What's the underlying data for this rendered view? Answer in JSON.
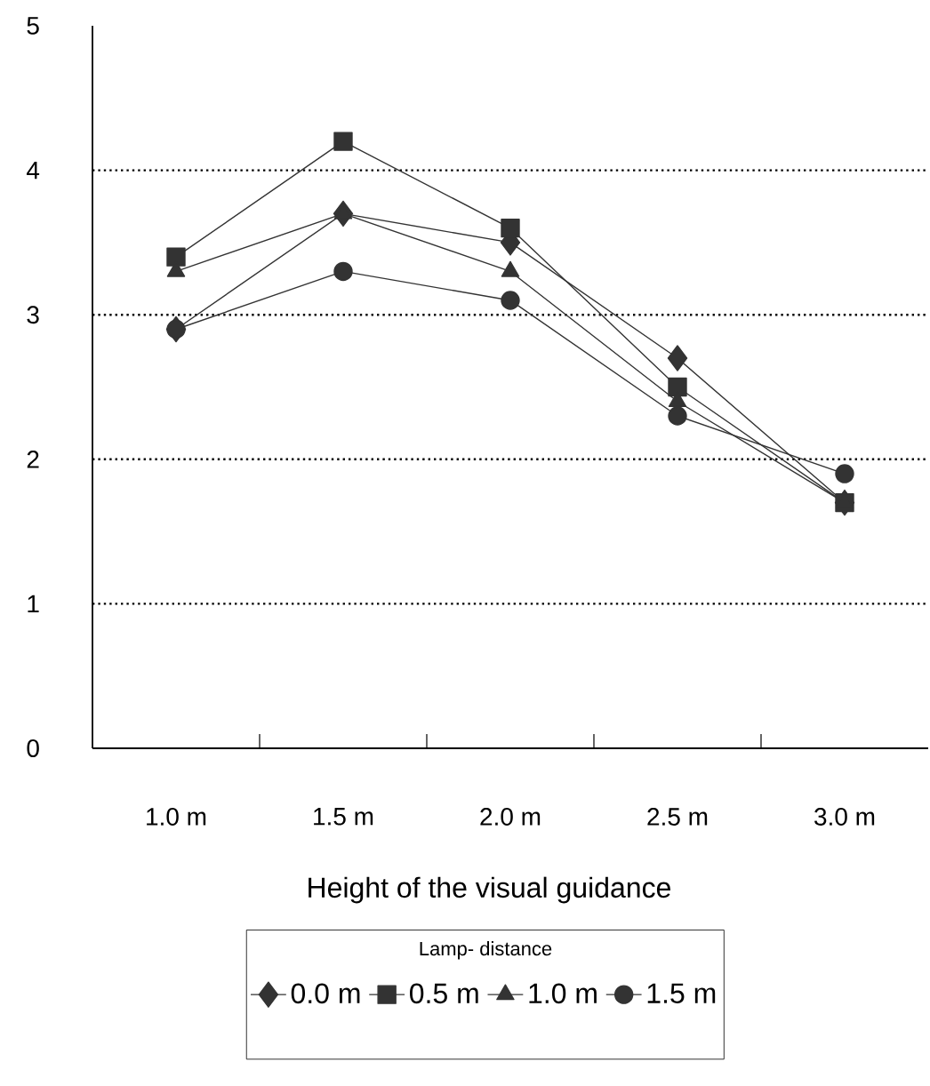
{
  "chart_data": {
    "type": "line",
    "xlabel": "Height of the visual guidance",
    "legend_title": "Lamp- distance",
    "categories": [
      "1.0 m",
      "1.5 m",
      "2.0 m",
      "2.5 m",
      "3.0 m"
    ],
    "series": [
      {
        "name": "0.0 m",
        "color": "#333333",
        "marker": "diamond",
        "values": [
          2.9,
          3.7,
          3.5,
          2.7,
          1.7
        ]
      },
      {
        "name": "0.5 m",
        "color": "#333333",
        "marker": "square",
        "values": [
          3.4,
          4.2,
          3.6,
          2.5,
          1.7
        ]
      },
      {
        "name": "1.0 m",
        "color": "#333333",
        "marker": "triangle",
        "values": [
          3.3,
          3.7,
          3.3,
          2.4,
          1.7
        ]
      },
      {
        "name": "1.5 m",
        "color": "#333333",
        "marker": "circle",
        "values": [
          2.9,
          3.3,
          3.1,
          2.3,
          1.9
        ]
      }
    ],
    "ylim": [
      0,
      5
    ],
    "yticks": [
      0,
      1,
      2,
      3,
      4,
      5
    ],
    "grid": "y",
    "legend": "bottom",
    "line_style": "solid"
  }
}
